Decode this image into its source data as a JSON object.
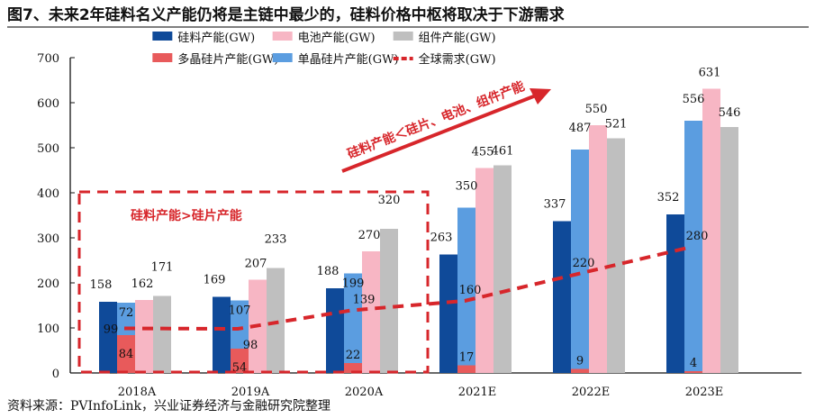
{
  "title": "图7、未来2年硅料名义产能仍将是主链中最少的，硅料价格中枢将取决于下游需求",
  "source": "资料来源：PVInfoLink，兴业证券经济与金融研究院整理",
  "annotations": {
    "box_label": "硅料产能>硅片产能",
    "arrow_label": "硅料产能＜硅片、电池、组件产能"
  },
  "chart_data": {
    "type": "bar",
    "categories": [
      "2018A",
      "2019A",
      "2020A",
      "2021E",
      "2022E",
      "2023E"
    ],
    "ylim": [
      0,
      700
    ],
    "yticks": [
      0,
      100,
      200,
      300,
      400,
      500,
      600,
      700
    ],
    "legend_position": "top",
    "series": [
      {
        "name": "硅料产能(GW)",
        "type": "bar",
        "color": "#0f4a99",
        "values": [
          158,
          169,
          188,
          263,
          337,
          352
        ]
      },
      {
        "name": "多晶硅片产能(GW)",
        "type": "stacked-bar",
        "color": "#e85a5b",
        "values": [
          84,
          54,
          22,
          17,
          9,
          4
        ]
      },
      {
        "name": "单晶硅片产能(GW)",
        "type": "stacked-bar",
        "color": "#5b9de0",
        "values": [
          72,
          107,
          199,
          350,
          487,
          556
        ]
      },
      {
        "name": "电池产能(GW)",
        "type": "bar",
        "color": "#f7b6c4",
        "values": [
          162,
          207,
          270,
          455,
          550,
          631
        ]
      },
      {
        "name": "组件产能(GW)",
        "type": "bar",
        "color": "#bfbfbf",
        "values": [
          171,
          233,
          320,
          461,
          521,
          546
        ]
      },
      {
        "name": "全球需求(GW)",
        "type": "line",
        "style": "dashed",
        "color": "#d7262b",
        "values": [
          99,
          98,
          139,
          160,
          220,
          280
        ]
      }
    ]
  }
}
